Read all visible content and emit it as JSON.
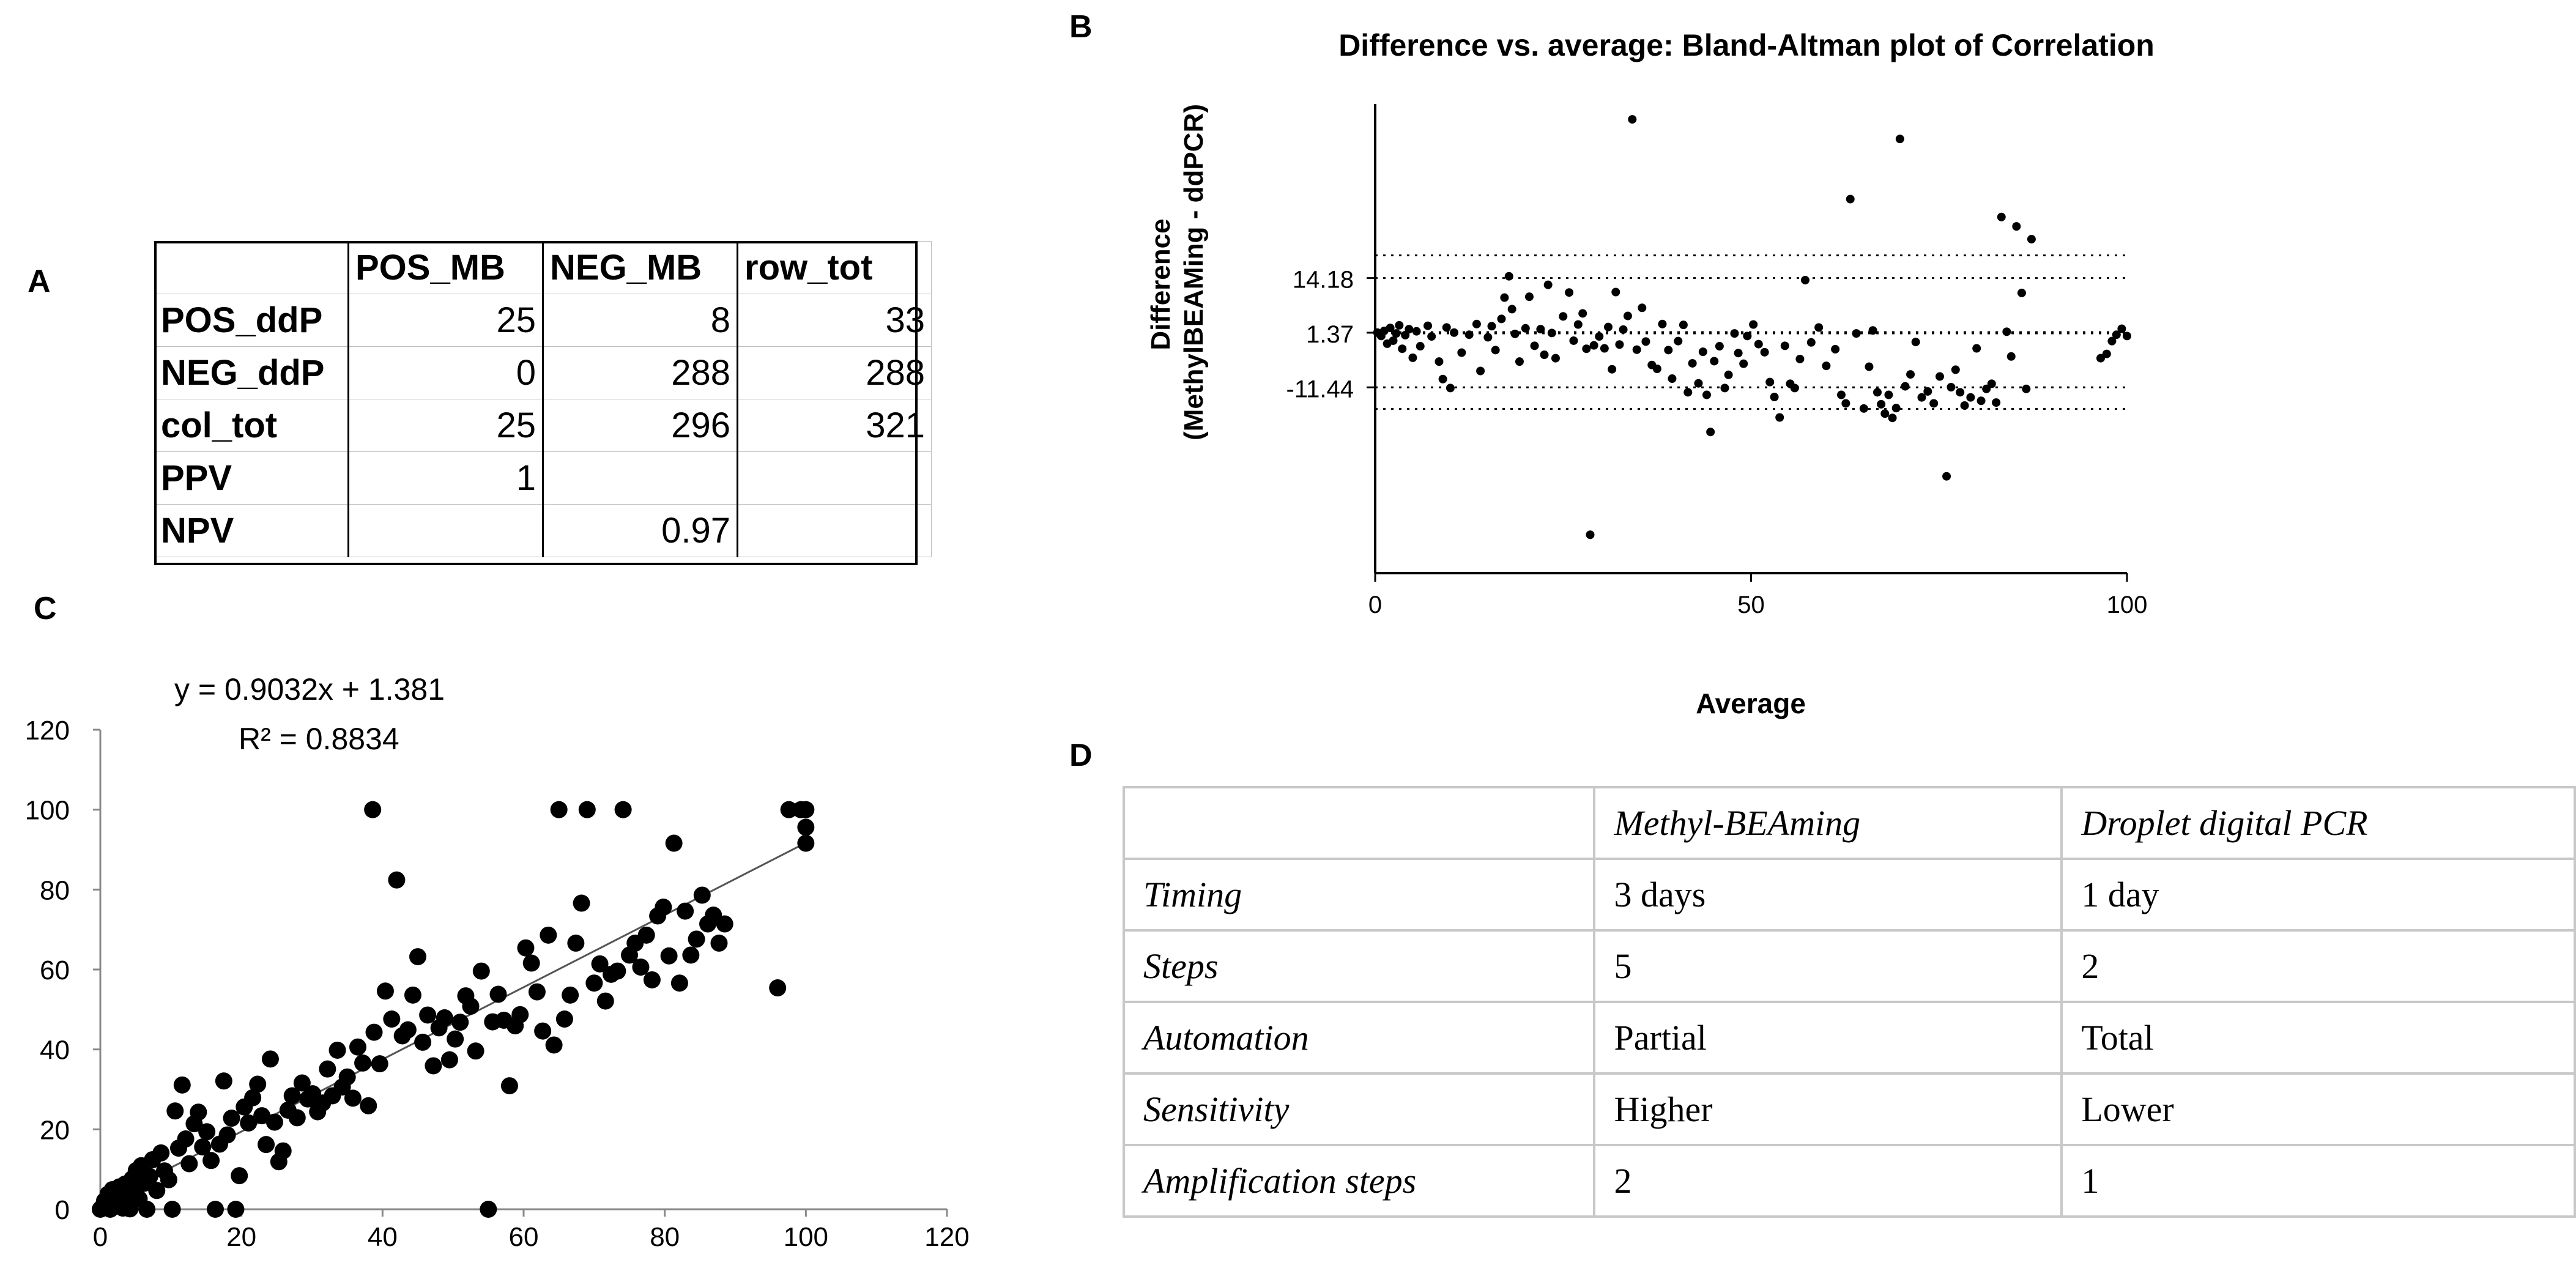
{
  "labels": {
    "A": "A",
    "B": "B",
    "C": "C",
    "D": "D"
  },
  "tableA": {
    "headers": [
      "",
      "POS_MB",
      "NEG_MB",
      "row_tot"
    ],
    "rows": [
      {
        "label": "POS_ddP",
        "cells": [
          "25",
          "8",
          "33"
        ]
      },
      {
        "label": "NEG_ddP",
        "cells": [
          "0",
          "288",
          "288"
        ]
      },
      {
        "label": "col_tot",
        "cells": [
          "25",
          "296",
          "321"
        ]
      },
      {
        "label": "PPV",
        "cells": [
          "1",
          "",
          ""
        ]
      },
      {
        "label": "NPV",
        "cells": [
          "",
          "0.97",
          ""
        ]
      }
    ]
  },
  "tableD": {
    "headers": [
      "",
      "Methyl-BEAming",
      "Droplet digital PCR"
    ],
    "rows": [
      {
        "label": "Timing",
        "cells": [
          "3 days",
          "1 day"
        ]
      },
      {
        "label": "Steps",
        "cells": [
          "5",
          "2"
        ]
      },
      {
        "label": "Automation",
        "cells": [
          "Partial",
          "Total"
        ]
      },
      {
        "label": "Sensitivity",
        "cells": [
          "Higher",
          "Lower"
        ]
      },
      {
        "label": "Amplification steps",
        "cells": [
          "2",
          "1"
        ]
      }
    ]
  },
  "chart_data": [
    {
      "id": "B",
      "type": "scatter",
      "title": "Difference vs. average: Bland-Altman plot of Correlation",
      "xlabel": "Average",
      "ylabel_line1": "Difference",
      "ylabel_line2": "(MethylBEAMing - ddPCR)",
      "xlim": [
        0,
        100
      ],
      "ylim": [
        -55,
        55
      ],
      "xticks": [
        "0",
        "50",
        "100"
      ],
      "reference_lines": [
        {
          "label": "14.18",
          "value": 14.18
        },
        {
          "label": "1.37",
          "value": 1.37
        },
        {
          "label": "-11.44",
          "value": -11.44
        },
        {
          "label": "",
          "value": 19.5
        },
        {
          "label": "",
          "value": -16.5
        }
      ],
      "points": [
        [
          0.3,
          1.4
        ],
        [
          0.8,
          0.6
        ],
        [
          1.2,
          1.8
        ],
        [
          1.6,
          -1.2
        ],
        [
          2.0,
          2.5
        ],
        [
          2.4,
          -0.5
        ],
        [
          2.8,
          1.2
        ],
        [
          3.2,
          3.1
        ],
        [
          3.6,
          -2.4
        ],
        [
          4.0,
          0.8
        ],
        [
          4.5,
          2.2
        ],
        [
          5.0,
          -4.5
        ],
        [
          5.5,
          1.7
        ],
        [
          6.0,
          -1.8
        ],
        [
          7.0,
          3.0
        ],
        [
          7.5,
          0.5
        ],
        [
          8.5,
          -5.4
        ],
        [
          9.0,
          -9.5
        ],
        [
          9.5,
          2.6
        ],
        [
          10.0,
          -11.6
        ],
        [
          10.5,
          1.4
        ],
        [
          11.5,
          -3.3
        ],
        [
          12.5,
          0.9
        ],
        [
          13.5,
          3.4
        ],
        [
          14.0,
          -7.6
        ],
        [
          15.0,
          0.3
        ],
        [
          15.5,
          2.9
        ],
        [
          16.0,
          -2.7
        ],
        [
          16.8,
          4.6
        ],
        [
          17.2,
          9.6
        ],
        [
          17.8,
          14.6
        ],
        [
          18.2,
          6.9
        ],
        [
          18.6,
          1.1
        ],
        [
          19.2,
          -5.4
        ],
        [
          20.0,
          2.4
        ],
        [
          20.5,
          9.8
        ],
        [
          21.2,
          -1.7
        ],
        [
          22.0,
          2.2
        ],
        [
          22.5,
          -3.8
        ],
        [
          23.0,
          12.6
        ],
        [
          23.5,
          1.3
        ],
        [
          24.0,
          -4.6
        ],
        [
          25.0,
          5.2
        ],
        [
          25.8,
          10.8
        ],
        [
          26.4,
          -0.5
        ],
        [
          27.0,
          3.3
        ],
        [
          27.6,
          5.9
        ],
        [
          28.1,
          -2.4
        ],
        [
          28.6,
          -46.0
        ],
        [
          29.1,
          -1.6
        ],
        [
          29.8,
          0.5
        ],
        [
          30.5,
          -2.3
        ],
        [
          31.0,
          2.7
        ],
        [
          31.5,
          -7.2
        ],
        [
          32.0,
          10.9
        ],
        [
          32.5,
          -1.4
        ],
        [
          33.0,
          2.1
        ],
        [
          33.6,
          5.3
        ],
        [
          34.2,
          51.4
        ],
        [
          34.8,
          -2.6
        ],
        [
          35.5,
          7.2
        ],
        [
          36.0,
          -0.7
        ],
        [
          36.8,
          -6.2
        ],
        [
          37.5,
          -7.1
        ],
        [
          38.2,
          3.4
        ],
        [
          39.0,
          -2.7
        ],
        [
          39.5,
          -9.4
        ],
        [
          40.3,
          -0.6
        ],
        [
          41.0,
          3.2
        ],
        [
          41.6,
          -12.6
        ],
        [
          42.2,
          -5.8
        ],
        [
          43.0,
          -10.5
        ],
        [
          43.6,
          -3.1
        ],
        [
          44.1,
          -13.2
        ],
        [
          44.6,
          -21.9
        ],
        [
          45.1,
          -5.3
        ],
        [
          45.8,
          -1.8
        ],
        [
          46.5,
          -11.6
        ],
        [
          47.0,
          -8.5
        ],
        [
          47.8,
          1.2
        ],
        [
          48.3,
          -3.4
        ],
        [
          49.0,
          -5.9
        ],
        [
          49.5,
          0.6
        ],
        [
          50.3,
          3.3
        ],
        [
          51.0,
          -1.3
        ],
        [
          51.8,
          -3.2
        ],
        [
          52.5,
          -10.2
        ],
        [
          53.1,
          -13.7
        ],
        [
          53.8,
          -18.5
        ],
        [
          54.5,
          -1.7
        ],
        [
          55.2,
          -10.6
        ],
        [
          55.8,
          -11.6
        ],
        [
          56.5,
          -4.8
        ],
        [
          57.2,
          13.7
        ],
        [
          58.0,
          -0.9
        ],
        [
          59.0,
          2.6
        ],
        [
          60.0,
          -6.4
        ],
        [
          61.2,
          -2.5
        ],
        [
          62.0,
          -13.2
        ],
        [
          62.6,
          -15.2
        ],
        [
          63.2,
          32.7
        ],
        [
          64.0,
          1.2
        ],
        [
          65.0,
          -16.4
        ],
        [
          65.7,
          -6.6
        ],
        [
          66.2,
          1.9
        ],
        [
          66.8,
          -12.6
        ],
        [
          67.3,
          -15.4
        ],
        [
          67.8,
          -17.6
        ],
        [
          68.3,
          -13.2
        ],
        [
          68.8,
          -18.6
        ],
        [
          69.3,
          -16.3
        ],
        [
          69.8,
          46.8
        ],
        [
          70.5,
          -11.2
        ],
        [
          71.2,
          -8.4
        ],
        [
          71.9,
          -0.8
        ],
        [
          72.7,
          -13.8
        ],
        [
          73.5,
          -12.4
        ],
        [
          74.3,
          -15.2
        ],
        [
          75.1,
          -8.9
        ],
        [
          76.0,
          -32.3
        ],
        [
          76.6,
          -11.4
        ],
        [
          77.2,
          -7.3
        ],
        [
          77.8,
          -12.6
        ],
        [
          78.4,
          -15.7
        ],
        [
          79.2,
          -13.8
        ],
        [
          80.0,
          -2.3
        ],
        [
          80.6,
          -14.6
        ],
        [
          81.3,
          -11.8
        ],
        [
          82.0,
          -10.6
        ],
        [
          82.6,
          -15.0
        ],
        [
          83.3,
          28.5
        ],
        [
          84.0,
          1.6
        ],
        [
          84.6,
          -4.2
        ],
        [
          85.3,
          26.3
        ],
        [
          86.0,
          10.7
        ],
        [
          86.6,
          -11.8
        ],
        [
          87.3,
          23.3
        ],
        [
          96.5,
          -4.6
        ],
        [
          97.3,
          -3.6
        ],
        [
          98.0,
          -0.6
        ],
        [
          98.6,
          0.9
        ],
        [
          99.3,
          2.3
        ],
        [
          100.0,
          0.6
        ]
      ]
    },
    {
      "id": "C",
      "type": "scatter",
      "title": "",
      "equation": "y = 0.9032x + 1.381",
      "r2": "R² = 0.8834",
      "xlim": [
        0,
        120
      ],
      "ylim": [
        0,
        120
      ],
      "xticks": [
        "0",
        "20",
        "40",
        "60",
        "80",
        "100",
        "120"
      ],
      "yticks": [
        "0",
        "20",
        "40",
        "60",
        "80",
        "100",
        "120"
      ],
      "trendline": {
        "slope": 0.9032,
        "intercept": 1.381,
        "x_range": [
          0,
          100
        ]
      },
      "points": [
        [
          0,
          0
        ],
        [
          0.3,
          0.6
        ],
        [
          0.6,
          2.1
        ],
        [
          0.9,
          1.3
        ],
        [
          1.1,
          3.8
        ],
        [
          1.4,
          0
        ],
        [
          1.7,
          4.9
        ],
        [
          2.0,
          0.8
        ],
        [
          2.3,
          2.7
        ],
        [
          2.7,
          5.6
        ],
        [
          3.0,
          1.4
        ],
        [
          3.2,
          0.3
        ],
        [
          3.5,
          6.3
        ],
        [
          3.8,
          3.1
        ],
        [
          4.2,
          0.1
        ],
        [
          4.5,
          7.6
        ],
        [
          4.8,
          4.4
        ],
        [
          5.1,
          9.7
        ],
        [
          5.5,
          2.6
        ],
        [
          5.8,
          10.9
        ],
        [
          6.2,
          6.5
        ],
        [
          6.6,
          0
        ],
        [
          7.0,
          8.2
        ],
        [
          7.4,
          12.4
        ],
        [
          8.0,
          4.7
        ],
        [
          8.6,
          14.1
        ],
        [
          9.1,
          9.6
        ],
        [
          9.7,
          7.4
        ],
        [
          10.2,
          0
        ],
        [
          10.6,
          24.6
        ],
        [
          11.1,
          15.3
        ],
        [
          11.6,
          31.1
        ],
        [
          12.1,
          17.6
        ],
        [
          12.6,
          11.4
        ],
        [
          13.3,
          21.4
        ],
        [
          13.9,
          24.3
        ],
        [
          14.5,
          15.6
        ],
        [
          15.1,
          19.4
        ],
        [
          15.7,
          12.2
        ],
        [
          16.3,
          0
        ],
        [
          16.9,
          16.3
        ],
        [
          17.5,
          32.1
        ],
        [
          18.0,
          18.6
        ],
        [
          18.6,
          22.8
        ],
        [
          19.2,
          0
        ],
        [
          19.7,
          8.4
        ],
        [
          20.4,
          25.6
        ],
        [
          21.0,
          21.6
        ],
        [
          21.6,
          27.9
        ],
        [
          22.3,
          31.3
        ],
        [
          22.9,
          23.4
        ],
        [
          23.5,
          16.2
        ],
        [
          24.1,
          37.6
        ],
        [
          24.7,
          21.8
        ],
        [
          25.3,
          11.9
        ],
        [
          25.9,
          14.6
        ],
        [
          26.6,
          24.8
        ],
        [
          27.2,
          28.4
        ],
        [
          27.9,
          22.9
        ],
        [
          28.6,
          31.6
        ],
        [
          29.4,
          27.6
        ],
        [
          30.1,
          28.9
        ],
        [
          30.8,
          24.4
        ],
        [
          31.5,
          26.6
        ],
        [
          32.2,
          35.1
        ],
        [
          32.9,
          28.4
        ],
        [
          33.6,
          39.8
        ],
        [
          34.3,
          30.6
        ],
        [
          35.0,
          33.1
        ],
        [
          35.8,
          27.8
        ],
        [
          36.5,
          40.6
        ],
        [
          37.2,
          36.6
        ],
        [
          38.0,
          25.9
        ],
        [
          38.8,
          44.3
        ],
        [
          38.6,
          100
        ],
        [
          39.6,
          36.4
        ],
        [
          40.4,
          54.6
        ],
        [
          41.3,
          47.6
        ],
        [
          42.0,
          82.4
        ],
        [
          42.8,
          43.4
        ],
        [
          43.6,
          44.9
        ],
        [
          44.3,
          53.6
        ],
        [
          45.0,
          63.2
        ],
        [
          45.7,
          41.8
        ],
        [
          46.4,
          48.6
        ],
        [
          47.2,
          35.9
        ],
        [
          48.0,
          45.4
        ],
        [
          48.8,
          47.9
        ],
        [
          49.5,
          37.4
        ],
        [
          50.3,
          42.6
        ],
        [
          51.0,
          46.8
        ],
        [
          51.8,
          53.4
        ],
        [
          52.5,
          50.8
        ],
        [
          53.2,
          39.6
        ],
        [
          54.0,
          59.6
        ],
        [
          55.0,
          0
        ],
        [
          55.6,
          46.9
        ],
        [
          56.4,
          53.8
        ],
        [
          57.2,
          47.3
        ],
        [
          58.0,
          30.9
        ],
        [
          58.8,
          45.9
        ],
        [
          59.5,
          48.7
        ],
        [
          60.3,
          65.4
        ],
        [
          61.1,
          61.6
        ],
        [
          61.9,
          54.4
        ],
        [
          62.7,
          44.6
        ],
        [
          63.5,
          68.6
        ],
        [
          64.3,
          41.1
        ],
        [
          65.0,
          100
        ],
        [
          65.8,
          47.6
        ],
        [
          66.6,
          53.6
        ],
        [
          67.4,
          66.6
        ],
        [
          68.2,
          76.6
        ],
        [
          69.0,
          100
        ],
        [
          70.0,
          56.6
        ],
        [
          70.8,
          61.4
        ],
        [
          71.6,
          52.1
        ],
        [
          72.4,
          58.8
        ],
        [
          73.3,
          59.6
        ],
        [
          74.1,
          100
        ],
        [
          75.0,
          63.6
        ],
        [
          75.8,
          66.6
        ],
        [
          76.6,
          60.6
        ],
        [
          77.4,
          68.6
        ],
        [
          78.2,
          57.4
        ],
        [
          79.0,
          73.4
        ],
        [
          79.8,
          75.6
        ],
        [
          80.6,
          63.4
        ],
        [
          81.3,
          91.6
        ],
        [
          82.1,
          56.6
        ],
        [
          82.9,
          74.6
        ],
        [
          83.7,
          63.6
        ],
        [
          84.5,
          67.6
        ],
        [
          85.3,
          78.6
        ],
        [
          86.1,
          71.4
        ],
        [
          86.9,
          73.6
        ],
        [
          87.7,
          66.6
        ],
        [
          88.5,
          71.4
        ],
        [
          96.0,
          55.4
        ],
        [
          97.6,
          100
        ],
        [
          99.3,
          100
        ],
        [
          100,
          95.6
        ],
        [
          100,
          91.6
        ],
        [
          100,
          100
        ]
      ]
    }
  ]
}
